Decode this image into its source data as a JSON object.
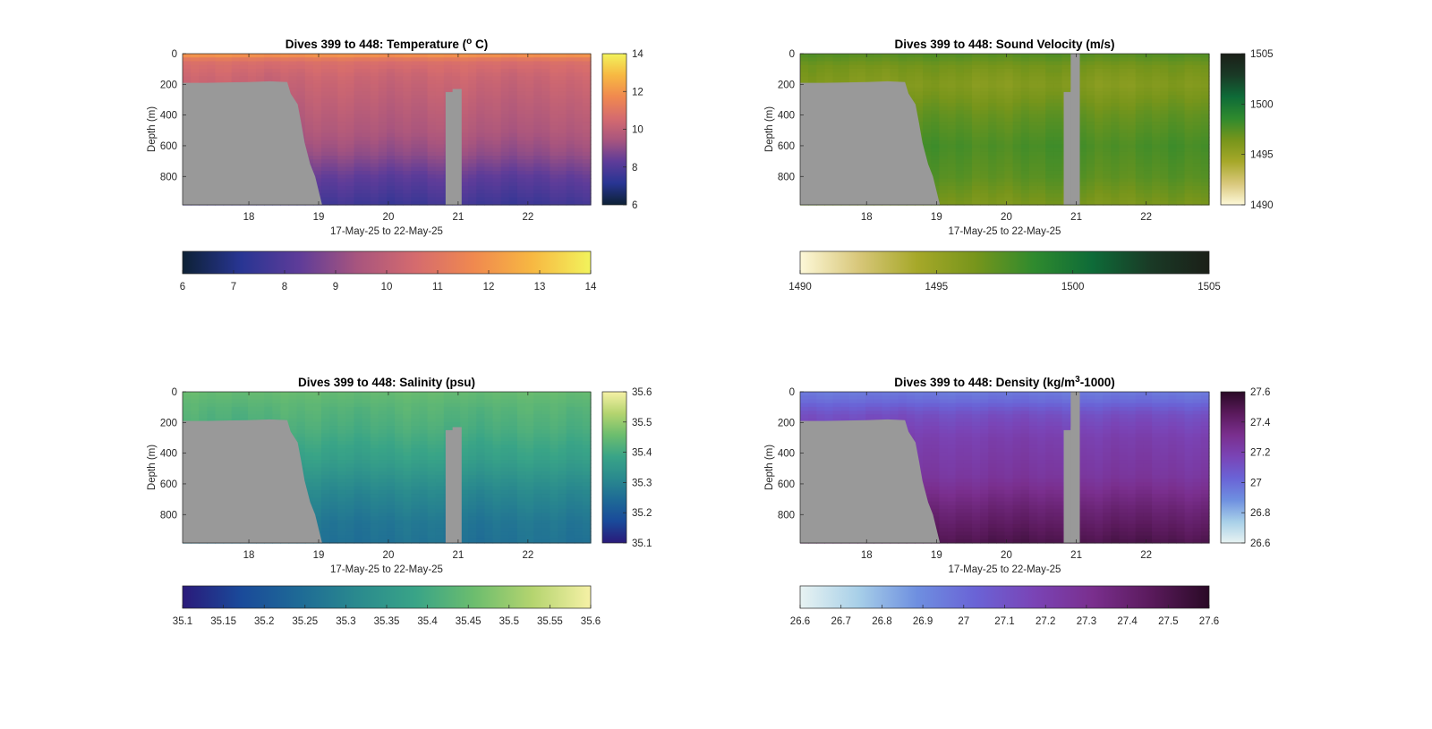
{
  "figure": {
    "background": "#ffffff",
    "land_color": "#999999"
  },
  "chart_data": [
    {
      "type": "heatmap",
      "variable": "temperature",
      "title": "Dives 399 to 448: Temperature (",
      "title_super": "o",
      "title_tail": " C)",
      "xlabel": "17-May-25 to 22-May-25",
      "ylabel": "Depth (m)",
      "xlim": [
        17.05,
        22.9
      ],
      "ylim": [
        0,
        985
      ],
      "x_ticks": [
        18,
        19,
        20,
        21,
        22
      ],
      "y_ticks": [
        0,
        200,
        400,
        600,
        800
      ],
      "colorbar_ticks": [
        6,
        8,
        10,
        12,
        14
      ],
      "colorbar_range": [
        6,
        14
      ],
      "horizontal_colorbar_ticks": [
        6,
        7,
        8,
        9,
        10,
        11,
        12,
        13,
        14
      ],
      "colormap": [
        "#0d2135",
        "#283593",
        "#5e3c99",
        "#a8557e",
        "#d56b6e",
        "#f0894f",
        "#f7b842",
        "#f2f35c"
      ],
      "profile_by_depth": [
        {
          "depth": 0,
          "value": 12.6
        },
        {
          "depth": 20,
          "value": 11.4
        },
        {
          "depth": 60,
          "value": 10.7
        },
        {
          "depth": 150,
          "value": 10.3
        },
        {
          "depth": 300,
          "value": 10.0
        },
        {
          "depth": 500,
          "value": 9.6
        },
        {
          "depth": 650,
          "value": 9.1
        },
        {
          "depth": 800,
          "value": 8.3
        },
        {
          "depth": 985,
          "value": 7.6
        }
      ]
    },
    {
      "type": "heatmap",
      "variable": "sound_velocity",
      "title": "Dives 399 to 448: Sound Velocity (m/s)",
      "xlabel": "17-May-25 to 22-May-25",
      "ylabel": "Depth (m)",
      "xlim": [
        17.05,
        22.9
      ],
      "ylim": [
        0,
        985
      ],
      "x_ticks": [
        18,
        19,
        20,
        21,
        22
      ],
      "y_ticks": [
        0,
        200,
        400,
        600,
        800
      ],
      "colorbar_ticks": [
        1490,
        1495,
        1500,
        1505
      ],
      "colorbar_range": [
        1490,
        1505
      ],
      "horizontal_colorbar_ticks": [
        1490,
        1495,
        1500,
        1505
      ],
      "colormap": [
        "#fdf8d8",
        "#d8c77a",
        "#a6a829",
        "#77951b",
        "#2f8a2e",
        "#0e6b38",
        "#1a3a26",
        "#1b1f18"
      ],
      "profile_by_depth": [
        {
          "depth": 0,
          "value": 1497.5
        },
        {
          "depth": 80,
          "value": 1496.5
        },
        {
          "depth": 200,
          "value": 1495.8
        },
        {
          "depth": 400,
          "value": 1497.0
        },
        {
          "depth": 600,
          "value": 1497.8
        },
        {
          "depth": 800,
          "value": 1497.3
        },
        {
          "depth": 985,
          "value": 1496.2
        }
      ]
    },
    {
      "type": "heatmap",
      "variable": "salinity",
      "title": "Dives 399 to 448: Salinity (psu)",
      "xlabel": "17-May-25 to 22-May-25",
      "ylabel": "Depth (m)",
      "xlim": [
        17.05,
        22.9
      ],
      "ylim": [
        0,
        985
      ],
      "x_ticks": [
        18,
        19,
        20,
        21,
        22
      ],
      "y_ticks": [
        0,
        200,
        400,
        600,
        800
      ],
      "colorbar_ticks": [
        35.1,
        35.2,
        35.3,
        35.4,
        35.5,
        35.6
      ],
      "colorbar_range": [
        35.1,
        35.6
      ],
      "horizontal_colorbar_ticks": [
        35.1,
        35.15,
        35.2,
        35.25,
        35.3,
        35.35,
        35.4,
        35.45,
        35.5,
        35.55,
        35.6
      ],
      "colormap": [
        "#2a1a7a",
        "#1a4a9a",
        "#1e6a96",
        "#2a8a8e",
        "#39a487",
        "#6cbd6e",
        "#b4d46f",
        "#f6f1a6"
      ],
      "profile_by_depth": [
        {
          "depth": 0,
          "value": 35.45
        },
        {
          "depth": 100,
          "value": 35.43
        },
        {
          "depth": 250,
          "value": 35.41
        },
        {
          "depth": 450,
          "value": 35.37
        },
        {
          "depth": 650,
          "value": 35.31
        },
        {
          "depth": 850,
          "value": 35.27
        },
        {
          "depth": 985,
          "value": 35.26
        }
      ]
    },
    {
      "type": "heatmap",
      "variable": "density",
      "title": "Dives 399 to 448: Density (kg/m",
      "title_super": "3",
      "title_tail": "-1000)",
      "xlabel": "17-May-25 to 22-May-25",
      "ylabel": "Depth (m)",
      "xlim": [
        17.05,
        22.9
      ],
      "ylim": [
        0,
        985
      ],
      "x_ticks": [
        18,
        19,
        20,
        21,
        22
      ],
      "y_ticks": [
        0,
        200,
        400,
        600,
        800
      ],
      "colorbar_ticks": [
        26.6,
        26.8,
        27,
        27.2,
        27.4,
        27.6
      ],
      "colorbar_tick_labels": [
        "26.6",
        "26.8",
        "27",
        "27.2",
        "27.4",
        "27.6"
      ],
      "colorbar_range": [
        26.6,
        27.6
      ],
      "horizontal_colorbar_ticks": [
        26.6,
        26.7,
        26.8,
        26.9,
        27,
        27.1,
        27.2,
        27.3,
        27.4,
        27.5,
        27.6
      ],
      "horizontal_colorbar_tick_labels": [
        "26.6",
        "26.7",
        "26.8",
        "26.9",
        "27",
        "27.1",
        "27.2",
        "27.3",
        "27.4",
        "27.5",
        "27.6"
      ],
      "colormap": [
        "#e8f3f2",
        "#a7cfe8",
        "#6e8fe0",
        "#6a63d6",
        "#7a44b6",
        "#7a2f8e",
        "#5a1a5c",
        "#2a0a26"
      ],
      "profile_by_depth": [
        {
          "depth": 0,
          "value": 26.95
        },
        {
          "depth": 60,
          "value": 27.0
        },
        {
          "depth": 150,
          "value": 27.12
        },
        {
          "depth": 300,
          "value": 27.2
        },
        {
          "depth": 550,
          "value": 27.26
        },
        {
          "depth": 750,
          "value": 27.38
        },
        {
          "depth": 985,
          "value": 27.5
        }
      ]
    }
  ],
  "bathymetry_depth_by_day": [
    {
      "x": 17.05,
      "depth": 190
    },
    {
      "x": 17.4,
      "depth": 190
    },
    {
      "x": 18.0,
      "depth": 185
    },
    {
      "x": 18.3,
      "depth": 180
    },
    {
      "x": 18.55,
      "depth": 185
    },
    {
      "x": 18.6,
      "depth": 260
    },
    {
      "x": 18.7,
      "depth": 330
    },
    {
      "x": 18.75,
      "depth": 450
    },
    {
      "x": 18.8,
      "depth": 580
    },
    {
      "x": 18.88,
      "depth": 720
    },
    {
      "x": 18.95,
      "depth": 800
    },
    {
      "x": 19.05,
      "depth": 985
    }
  ],
  "data_gap": {
    "x_start": 20.82,
    "x_end": 21.05,
    "top_depth": 230
  }
}
